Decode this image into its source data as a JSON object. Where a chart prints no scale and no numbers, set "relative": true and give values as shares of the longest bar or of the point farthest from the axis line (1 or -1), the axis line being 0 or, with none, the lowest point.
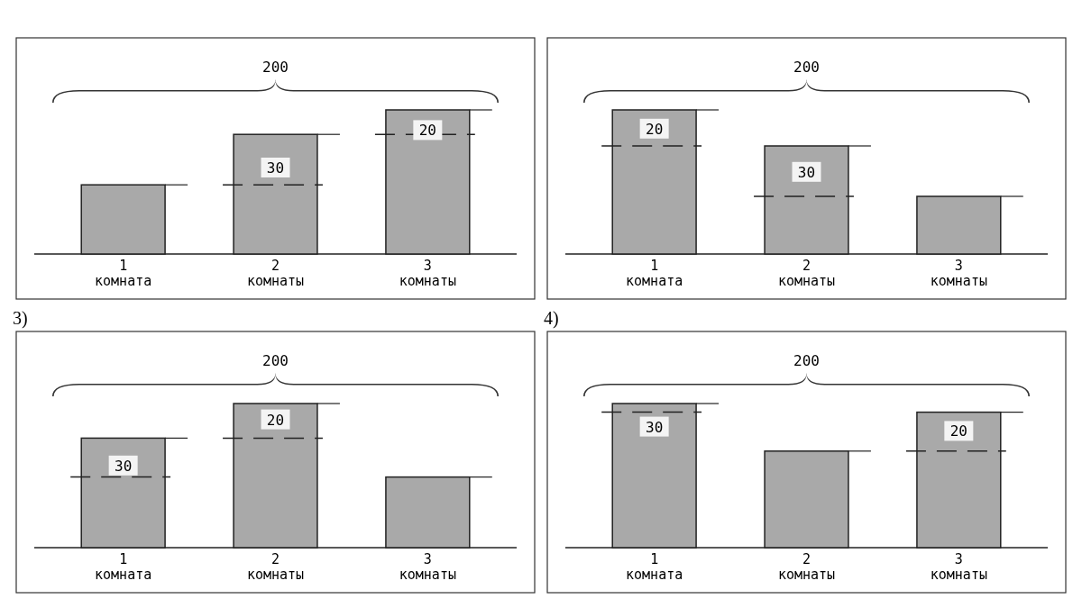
{
  "chart_data": [
    {
      "type": "bar",
      "relative": true,
      "categories": [
        "1 комната",
        "2 комнаты",
        "3 комнаты"
      ],
      "values": [
        0.48,
        0.83,
        1
      ],
      "color": "#a9a9a9",
      "annotations": [
        "200",
        {
          "text": "30",
          "x": "2 комнаты",
          "y": 0.6
        },
        {
          "text": "20",
          "x": "3 комнаты",
          "y": 0.86
        }
      ]
    },
    {
      "type": "bar",
      "relative": true,
      "categories": [
        "1 комната",
        "2 комнаты",
        "3 комнаты"
      ],
      "values": [
        1,
        0.75,
        0.4
      ],
      "color": "#a9a9a9",
      "annotations": [
        "200",
        {
          "text": "20",
          "x": "1 комната",
          "y": 0.87
        },
        {
          "text": "30",
          "x": "2 комнаты",
          "y": 0.57
        }
      ]
    },
    {
      "type": "bar",
      "relative": true,
      "title": "3)",
      "categories": [
        "1 комната",
        "2 комнаты",
        "3 комнаты"
      ],
      "values": [
        0.76,
        1,
        0.49
      ],
      "color": "#a9a9a9",
      "annotations": [
        "200",
        {
          "text": "30",
          "x": "1 комната",
          "y": 0.57
        },
        {
          "text": "20",
          "x": "2 комнаты",
          "y": 0.89
        }
      ]
    },
    {
      "type": "bar",
      "relative": true,
      "title": "4)",
      "categories": [
        "1 комната",
        "2 комнаты",
        "3 комнаты"
      ],
      "values": [
        1,
        0.67,
        0.94
      ],
      "color": "#a9a9a9",
      "annotations": [
        "200",
        {
          "text": "30",
          "x": "1 комната",
          "y": 0.84
        },
        {
          "text": "20",
          "x": "3 комнаты",
          "y": 0.81
        }
      ]
    }
  ]
}
